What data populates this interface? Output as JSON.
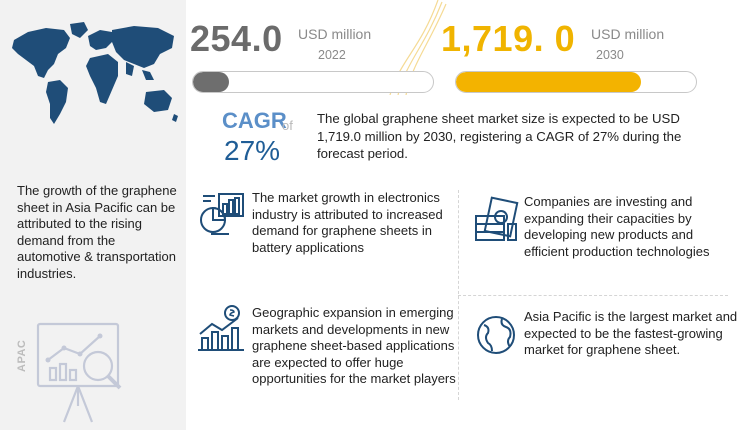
{
  "metrics": [
    {
      "value": "254.0",
      "unit": "USD million",
      "year": "2022",
      "bar_fraction": 0.15
    },
    {
      "value": "1,719. 0",
      "unit": "USD million",
      "year": "2030",
      "bar_fraction": 0.77
    }
  ],
  "cagr": {
    "label": "CAGR",
    "of": "of",
    "value": "27%"
  },
  "summary": "The global graphene sheet market size is expected to be USD 1,719.0 million by 2030, registering a CAGR of 27% during the forecast period.",
  "left_panel": {
    "text": "The growth of the graphene sheet in Asia Pacific can be attributed to the rising demand from the automotive & transportation industries.",
    "region_label": "APAC"
  },
  "drivers": [
    {
      "text": "The market growth in electronics industry is attributed to increased demand for graphene sheets in battery applications",
      "icon": "analytics-chart-icon"
    },
    {
      "text": "Companies are investing and expanding their capacities by developing new products and efficient production technologies",
      "icon": "money-stack-icon"
    },
    {
      "text": "Geographic expansion in emerging markets and developments in new graphene sheet-based applications are expected to offer huge opportunities for the market players",
      "icon": "growth-chart-icon"
    },
    {
      "text": "Asia Pacific is the largest market and expected to be the fastest-growing market for graphene sheet.",
      "icon": "globe-icon"
    }
  ],
  "colors": {
    "accent_2030": "#f3b300",
    "bar_2022": "#6e6e6e",
    "cagr_blue": "#1f5d96"
  }
}
